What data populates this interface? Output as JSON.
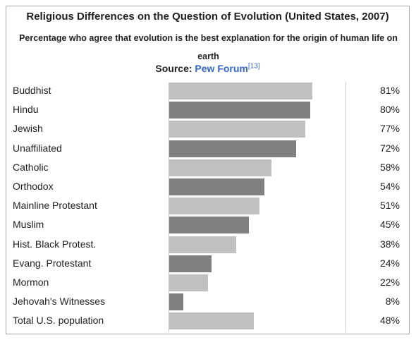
{
  "chart_data": {
    "type": "bar",
    "orientation": "horizontal",
    "title": "Religious Differences on the Question of Evolution (United States, 2007)",
    "subtitle": "Percentage who agree that evolution is the best explanation for the origin of human life on earth",
    "source_prefix": "Source: ",
    "source_name": "Pew Forum",
    "source_ref": "[13]",
    "categories": [
      "Buddhist",
      "Hindu",
      "Jewish",
      "Unaffiliated",
      "Catholic",
      "Orthodox",
      "Mainline Protestant",
      "Muslim",
      "Hist. Black Protest.",
      "Evang. Protestant",
      "Mormon",
      "Jehovah's Witnesses",
      "Total U.S. population"
    ],
    "values": [
      81,
      80,
      77,
      72,
      58,
      54,
      51,
      45,
      38,
      24,
      22,
      8,
      48
    ],
    "value_labels": [
      "81%",
      "80%",
      "77%",
      "72%",
      "58%",
      "54%",
      "51%",
      "45%",
      "38%",
      "24%",
      "22%",
      "8%",
      "48%"
    ],
    "xlim": [
      0,
      100
    ],
    "grid": false,
    "legend": "none",
    "colors": {
      "light_bar": "#c0c0c0",
      "dark_bar": "#808080",
      "link": "#3366cc"
    }
  }
}
